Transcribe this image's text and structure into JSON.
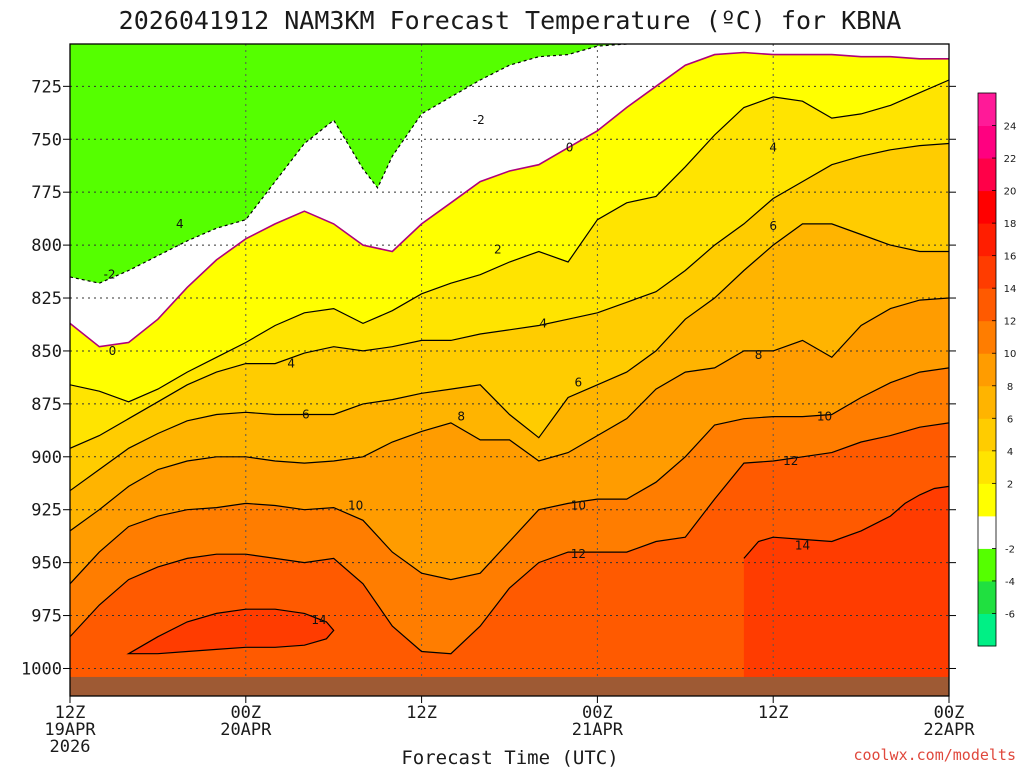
{
  "chart_data": {
    "type": "heatmap",
    "title": "2026041912 NAM3KM Forecast Temperature (ºC) for KBNA",
    "xlabel": "Forecast Time (UTC)",
    "ylabel": "",
    "credit": "coolwx.com/modelts",
    "y_axis": {
      "ticks": [
        725,
        750,
        775,
        800,
        825,
        850,
        875,
        900,
        925,
        950,
        975,
        1000
      ],
      "range": [
        1013,
        705
      ],
      "inverted": true,
      "unit": "hPa"
    },
    "x_axis": {
      "ticks": [
        {
          "t": 0,
          "hour": "12Z",
          "date": "19APR",
          "year": "2026"
        },
        {
          "t": 12,
          "hour": "00Z",
          "date": "20APR",
          "year": ""
        },
        {
          "t": 24,
          "hour": "12Z",
          "date": "",
          "year": ""
        },
        {
          "t": 36,
          "hour": "00Z",
          "date": "21APR",
          "year": ""
        },
        {
          "t": 48,
          "hour": "12Z",
          "date": "",
          "year": ""
        },
        {
          "t": 60,
          "hour": "00Z",
          "date": "22APR",
          "year": ""
        }
      ],
      "range": [
        0,
        60
      ],
      "unit": "hours from 2026041912"
    },
    "grid": true,
    "colorbar": {
      "levels": [
        -8,
        -6,
        -4,
        -2,
        0,
        2,
        4,
        6,
        8,
        10,
        12,
        14,
        16,
        18,
        20,
        22,
        24,
        26
      ],
      "labels": [
        "-6",
        "-4",
        "-2",
        "2",
        "4",
        "6",
        "8",
        "10",
        "12",
        "14",
        "16",
        "18",
        "20",
        "22",
        "24"
      ],
      "colors": [
        "#00f085",
        "#20e040",
        "#55ff00",
        "#ffffff",
        "#ffff00",
        "#ffe400",
        "#ffcc00",
        "#ffb400",
        "#ff9c00",
        "#ff7d00",
        "#ff5a00",
        "#ff3c00",
        "#ff1e00",
        "#ff0000",
        "#ff0048",
        "#ff0080",
        "#ff1a98"
      ],
      "position": "right"
    },
    "contour_levels": [
      -2,
      0,
      2,
      4,
      6,
      8,
      10,
      12,
      14
    ],
    "contour_labels": [
      {
        "text": "-2",
        "t": 2.7,
        "p": 814
      },
      {
        "text": "-2",
        "t": 27.9,
        "p": 741
      },
      {
        "text": "0",
        "t": 2.9,
        "p": 850
      },
      {
        "text": "0",
        "t": 34.1,
        "p": 754
      },
      {
        "text": "4",
        "t": 7.5,
        "p": 790
      },
      {
        "text": "2",
        "t": 29.2,
        "p": 802
      },
      {
        "text": "4",
        "t": 15.1,
        "p": 856
      },
      {
        "text": "4",
        "t": 32.3,
        "p": 837
      },
      {
        "text": "4",
        "t": 48.0,
        "p": 754
      },
      {
        "text": "6",
        "t": 16.1,
        "p": 880
      },
      {
        "text": "6",
        "t": 34.7,
        "p": 865
      },
      {
        "text": "6",
        "t": 48.0,
        "p": 791
      },
      {
        "text": "8",
        "t": 26.7,
        "p": 881
      },
      {
        "text": "8",
        "t": 47.0,
        "p": 852
      },
      {
        "text": "10",
        "t": 19.5,
        "p": 923
      },
      {
        "text": "10",
        "t": 34.7,
        "p": 923
      },
      {
        "text": "10",
        "t": 51.5,
        "p": 881
      },
      {
        "text": "12",
        "t": 34.7,
        "p": 946
      },
      {
        "text": "12",
        "t": 49.2,
        "p": 902
      },
      {
        "text": "14",
        "t": 17.0,
        "p": 977
      },
      {
        "text": "14",
        "t": 50.0,
        "p": 942
      }
    ],
    "series": [
      {
        "name": "-2",
        "t": [
          0,
          2,
          4,
          6,
          8,
          10,
          12,
          14,
          16,
          18,
          20,
          21,
          22,
          24,
          26,
          28,
          30,
          32,
          34,
          36,
          38
        ],
        "p": [
          815,
          818,
          812,
          805,
          798,
          792,
          788,
          770,
          752,
          741,
          764,
          773,
          758,
          738,
          730,
          722,
          715,
          711,
          710,
          706,
          705
        ]
      },
      {
        "name": "0",
        "t": [
          0,
          2,
          4,
          6,
          8,
          10,
          12,
          14,
          16,
          18,
          20,
          22,
          24,
          26,
          28,
          30,
          32,
          34,
          36,
          38,
          40,
          42,
          44,
          46,
          48,
          50,
          52,
          54,
          56,
          58,
          60
        ],
        "p": [
          837,
          848,
          846,
          835,
          820,
          807,
          797,
          790,
          784,
          790,
          800,
          803,
          790,
          780,
          770,
          765,
          762,
          754,
          746,
          735,
          725,
          715,
          710,
          709,
          710,
          710,
          710,
          711,
          711,
          712,
          712
        ]
      },
      {
        "name": "2",
        "t": [
          0,
          2,
          4,
          6,
          8,
          10,
          12,
          14,
          16,
          18,
          20,
          22,
          24,
          26,
          28,
          30,
          32,
          34,
          36,
          38,
          40,
          42,
          44,
          46,
          48,
          50,
          52,
          54,
          56,
          58,
          60
        ],
        "p": [
          866,
          869,
          874,
          868,
          860,
          853,
          846,
          838,
          832,
          830,
          837,
          831,
          823,
          818,
          814,
          808,
          803,
          808,
          788,
          780,
          777,
          763,
          748,
          735,
          730,
          732,
          740,
          738,
          734,
          728,
          722
        ]
      },
      {
        "name": "4",
        "t": [
          0,
          2,
          4,
          6,
          8,
          10,
          12,
          14,
          16,
          18,
          20,
          22,
          24,
          26,
          28,
          30,
          32,
          34,
          36,
          38,
          40,
          42,
          44,
          46,
          48,
          50,
          52,
          54,
          56,
          58,
          60
        ],
        "p": [
          896,
          890,
          882,
          874,
          866,
          860,
          856,
          856,
          851,
          848,
          850,
          848,
          845,
          845,
          842,
          840,
          838,
          835,
          832,
          827,
          822,
          812,
          800,
          790,
          778,
          770,
          762,
          758,
          755,
          753,
          752
        ]
      },
      {
        "name": "6",
        "t": [
          0,
          2,
          4,
          6,
          8,
          10,
          12,
          14,
          16,
          18,
          20,
          22,
          24,
          26,
          28,
          30,
          32,
          34,
          36,
          38,
          40,
          42,
          44,
          46,
          48,
          50,
          52,
          54,
          56,
          58,
          60
        ],
        "p": [
          916,
          906,
          896,
          889,
          883,
          880,
          879,
          880,
          880,
          880,
          875,
          873,
          870,
          868,
          866,
          880,
          891,
          872,
          866,
          860,
          850,
          835,
          825,
          812,
          800,
          790,
          790,
          795,
          800,
          803,
          803
        ]
      },
      {
        "name": "8",
        "t": [
          0,
          2,
          4,
          6,
          8,
          10,
          12,
          14,
          16,
          18,
          20,
          22,
          24,
          26,
          28,
          30,
          32,
          34,
          36,
          38,
          40,
          42,
          44,
          46,
          48,
          50,
          52,
          54,
          56,
          58,
          60
        ],
        "p": [
          935,
          925,
          914,
          906,
          902,
          900,
          900,
          902,
          903,
          902,
          900,
          893,
          888,
          884,
          892,
          892,
          902,
          898,
          890,
          882,
          868,
          860,
          858,
          850,
          850,
          845,
          853,
          838,
          830,
          826,
          825
        ]
      },
      {
        "name": "10",
        "t": [
          0,
          2,
          4,
          6,
          8,
          10,
          12,
          14,
          16,
          18,
          20,
          22,
          24,
          26,
          28,
          30,
          32,
          34,
          36,
          38,
          40,
          42,
          44,
          46,
          48,
          50,
          52,
          54,
          56,
          58,
          60
        ],
        "p": [
          960,
          945,
          933,
          928,
          925,
          924,
          922,
          923,
          925,
          924,
          930,
          945,
          955,
          958,
          955,
          940,
          925,
          922,
          920,
          920,
          912,
          900,
          885,
          882,
          881,
          881,
          880,
          872,
          865,
          860,
          858
        ]
      },
      {
        "name": "12",
        "t": [
          0,
          2,
          4,
          6,
          8,
          10,
          12,
          14,
          16,
          18,
          20,
          22,
          24,
          26,
          28,
          30,
          32,
          34,
          36,
          38,
          40,
          42,
          44,
          46,
          48,
          50,
          52,
          54,
          56,
          58,
          60
        ],
        "p": [
          985,
          970,
          958,
          952,
          948,
          946,
          946,
          948,
          950,
          948,
          960,
          980,
          992,
          993,
          980,
          962,
          950,
          945,
          945,
          945,
          940,
          938,
          920,
          903,
          902,
          900,
          898,
          893,
          890,
          886,
          884
        ]
      },
      {
        "name": "14",
        "t": [
          4,
          6,
          8,
          10,
          12,
          14,
          16,
          17.5,
          18,
          17.5,
          16,
          14,
          12,
          10,
          8,
          6,
          4
        ],
        "p": [
          993,
          985,
          978,
          974,
          972,
          972,
          974,
          978,
          982,
          986,
          989,
          990,
          990,
          991,
          992,
          993,
          993
        ]
      },
      {
        "name": "14b",
        "t": [
          46,
          47,
          48,
          50,
          52,
          54,
          56,
          57,
          58,
          59,
          60
        ],
        "p": [
          948,
          940,
          938,
          939,
          940,
          935,
          928,
          922,
          918,
          915,
          914
        ]
      }
    ],
    "ground_level_hpa": 1004
  }
}
